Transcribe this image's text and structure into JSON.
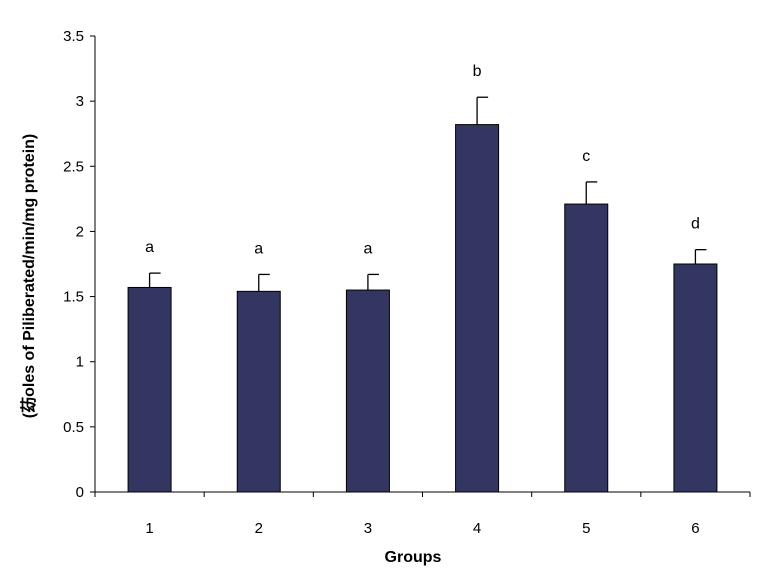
{
  "chart_data": {
    "type": "bar",
    "title": "",
    "xlabel": "Groups",
    "ylabel": "(苭oles of Piliberated/min/mg protein)",
    "categories": [
      "1",
      "2",
      "3",
      "4",
      "5",
      "6"
    ],
    "series": [
      {
        "values": [
          1.57,
          1.54,
          1.55,
          2.82,
          2.21,
          1.75
        ],
        "errors": [
          0.11,
          0.13,
          0.12,
          0.21,
          0.17,
          0.11
        ],
        "labels": [
          "a",
          "a",
          "a",
          "b",
          "c",
          "d"
        ]
      }
    ],
    "ylim": [
      0,
      3.5
    ],
    "yticks": [
      "0",
      "0.5",
      "1",
      "1.5",
      "2",
      "2.5",
      "3",
      "3.5"
    ],
    "ytick_values": [
      0,
      0.5,
      1,
      1.5,
      2,
      2.5,
      3,
      3.5
    ],
    "grid": false,
    "legend": "none",
    "colors": {
      "bar_fill": "#333660",
      "bar_stroke": "#000000",
      "axis": "#000000"
    }
  }
}
